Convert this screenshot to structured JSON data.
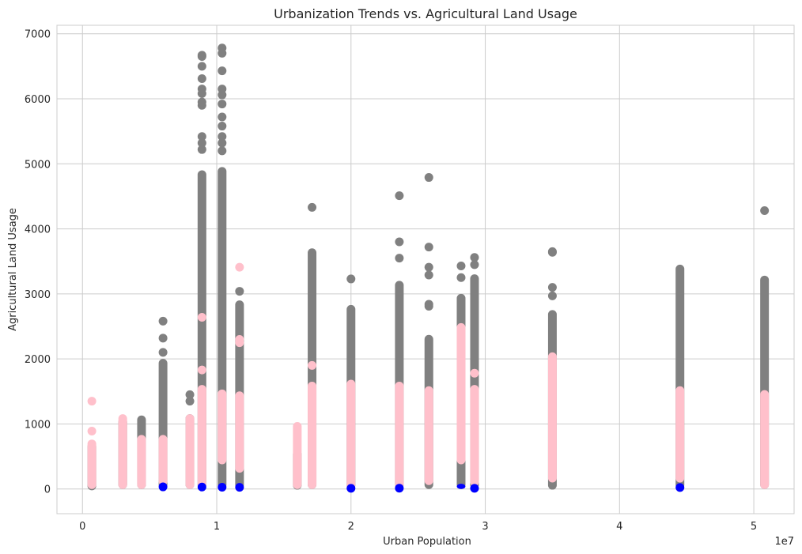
{
  "chart_data": {
    "type": "scatter",
    "title": "Urbanization Trends vs. Agricultural Land Usage",
    "xlabel": "Urban Population",
    "ylabel": "Agricultural Land Usage",
    "x_offset_text": "1e7",
    "xlim": [
      -1900000,
      53000000
    ],
    "ylim": [
      -380,
      7130
    ],
    "x_ticks": [
      0,
      10000000,
      20000000,
      30000000,
      40000000,
      50000000
    ],
    "x_tick_labels": [
      "0",
      "1",
      "2",
      "3",
      "4",
      "5"
    ],
    "y_ticks": [
      0,
      1000,
      2000,
      3000,
      4000,
      5000,
      6000,
      7000
    ],
    "y_tick_labels": [
      "0",
      "1000",
      "2000",
      "3000",
      "4000",
      "5000",
      "6000",
      "7000"
    ],
    "grid": true,
    "legend": "none",
    "colors": {
      "gray": "#808080",
      "pink": "#ffc0cb",
      "blue": "#0000ff"
    },
    "series": [
      {
        "color": "gray",
        "columns": [
          {
            "x": 700000,
            "min": -20,
            "max": 720
          },
          {
            "x": 3000000,
            "min": 0,
            "max": 1100
          },
          {
            "x": 4400000,
            "min": 0,
            "max": 1130
          },
          {
            "x": 6000000,
            "min": 0,
            "max": 2000,
            "outliers": [
              2100,
              2320,
              2580
            ]
          },
          {
            "x": 8000000,
            "min": 0,
            "max": 1150,
            "outliers": [
              1350,
              1450
            ]
          },
          {
            "x": 8900000,
            "min": 0,
            "max": 4900,
            "outliers": [
              5220,
              5320,
              5420,
              5900,
              5950,
              6080,
              6150,
              6310,
              6500,
              6650,
              6670
            ]
          },
          {
            "x": 10400000,
            "min": 0,
            "max": 4950,
            "outliers": [
              5200,
              5320,
              5420,
              5580,
              5720,
              5920,
              6060,
              6150,
              6430,
              6700,
              6780
            ]
          },
          {
            "x": 11700000,
            "min": 0,
            "max": 2900,
            "outliers": [
              3040
            ]
          },
          {
            "x": 16000000,
            "min": -10,
            "max": 600
          },
          {
            "x": 17100000,
            "min": 0,
            "max": 3700,
            "outliers": [
              4330
            ]
          },
          {
            "x": 20000000,
            "min": -10,
            "max": 2830,
            "outliers": [
              3230
            ]
          },
          {
            "x": 23600000,
            "min": 0,
            "max": 3200,
            "outliers": [
              3550,
              3800,
              4510
            ]
          },
          {
            "x": 25800000,
            "min": 0,
            "max": 2370,
            "outliers": [
              2810,
              2840,
              3290,
              3410,
              3720,
              4790
            ]
          },
          {
            "x": 28200000,
            "min": 0,
            "max": 3000,
            "outliers": [
              3250,
              3430
            ]
          },
          {
            "x": 29200000,
            "min": 0,
            "max": 3300,
            "outliers": [
              3450,
              3560
            ]
          },
          {
            "x": 35000000,
            "min": -10,
            "max": 2750,
            "outliers": [
              2970,
              3100,
              3640,
              3650
            ]
          },
          {
            "x": 44500000,
            "min": 0,
            "max": 3450
          },
          {
            "x": 50800000,
            "min": 0,
            "max": 3280,
            "outliers": [
              4280
            ]
          }
        ]
      },
      {
        "color": "pink",
        "columns": [
          {
            "x": 700000,
            "min": 0,
            "max": 760,
            "outliers": [
              890,
              1350
            ]
          },
          {
            "x": 3000000,
            "min": 0,
            "max": 1150
          },
          {
            "x": 4400000,
            "min": 0,
            "max": 830
          },
          {
            "x": 6000000,
            "min": 50,
            "max": 830
          },
          {
            "x": 8000000,
            "min": 0,
            "max": 1150
          },
          {
            "x": 8900000,
            "min": 0,
            "max": 1600,
            "outliers": [
              1830,
              2640
            ]
          },
          {
            "x": 10400000,
            "min": 380,
            "max": 1530
          },
          {
            "x": 11700000,
            "min": 250,
            "max": 1500,
            "outliers": [
              2250,
              2300,
              3410
            ]
          },
          {
            "x": 16000000,
            "min": 0,
            "max": 1030
          },
          {
            "x": 17100000,
            "min": 0,
            "max": 1650,
            "outliers": [
              1900
            ]
          },
          {
            "x": 20000000,
            "min": 0,
            "max": 1680
          },
          {
            "x": 23600000,
            "min": 0,
            "max": 1650
          },
          {
            "x": 25800000,
            "min": 60,
            "max": 1580
          },
          {
            "x": 28200000,
            "min": 380,
            "max": 2550
          },
          {
            "x": 29200000,
            "min": 40,
            "max": 1600,
            "outliers": [
              1780
            ]
          },
          {
            "x": 35000000,
            "min": 100,
            "max": 2100
          },
          {
            "x": 44500000,
            "min": 100,
            "max": 1580
          },
          {
            "x": 50800000,
            "min": 0,
            "max": 1520
          }
        ]
      },
      {
        "color": "blue",
        "columns": [
          {
            "x": 6000000,
            "min": 10,
            "max": 55
          },
          {
            "x": 8900000,
            "min": 0,
            "max": 60
          },
          {
            "x": 10400000,
            "min": 0,
            "max": 55
          },
          {
            "x": 11700000,
            "min": 0,
            "max": 50
          },
          {
            "x": 20000000,
            "min": -10,
            "max": 30
          },
          {
            "x": 23600000,
            "min": -5,
            "max": 30
          },
          {
            "x": 28200000,
            "min": 0,
            "max": 80
          },
          {
            "x": 29200000,
            "min": 0,
            "max": 20
          },
          {
            "x": 44500000,
            "min": 0,
            "max": 45
          }
        ]
      }
    ]
  }
}
